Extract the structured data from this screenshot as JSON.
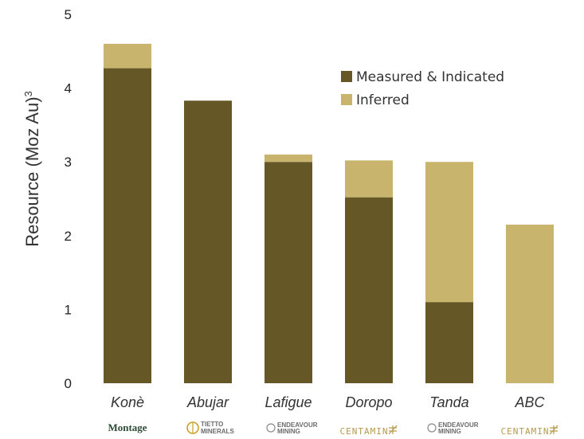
{
  "chart_data": {
    "type": "bar",
    "stacked": true,
    "title": "",
    "xlabel": "",
    "ylabel": "Resource (Moz Au)",
    "ylabel_superscript": "3",
    "ylim": [
      0,
      5
    ],
    "yticks": [
      "0",
      "1",
      "2",
      "3",
      "4",
      "5"
    ],
    "grid": false,
    "legend_position": "top-right",
    "categories": [
      "Konè",
      "Abujar",
      "Lafigue",
      "Doropo",
      "Tanda",
      "ABC"
    ],
    "series": [
      {
        "name": "Measured & Indicated",
        "color": "#655726",
        "values": [
          4.27,
          3.83,
          3.0,
          2.52,
          1.1,
          0.0
        ]
      },
      {
        "name": "Inferred",
        "color": "#c8b46c",
        "values": [
          0.33,
          0.0,
          0.1,
          0.5,
          1.9,
          2.15
        ]
      }
    ],
    "logos": [
      {
        "category": "Konè",
        "owner": "Montage Gold",
        "text": "Montage",
        "icon": "montage-logo"
      },
      {
        "category": "Abujar",
        "owner": "Tietto Minerals",
        "text": "TIETTO MINERALS",
        "icon": "tietto-logo"
      },
      {
        "category": "Lafigue",
        "owner": "Endeavour Mining",
        "text": "ENDEAVOUR MINING",
        "icon": "endeavour-logo"
      },
      {
        "category": "Doropo",
        "owner": "Centamin",
        "text": "CENTAMIN",
        "icon": "centamin-logo"
      },
      {
        "category": "Tanda",
        "owner": "Endeavour Mining",
        "text": "ENDEAVOUR MINING",
        "icon": "endeavour-logo"
      },
      {
        "category": "ABC",
        "owner": "Centamin",
        "text": "CENTAMIN",
        "icon": "centamin-logo"
      }
    ]
  }
}
